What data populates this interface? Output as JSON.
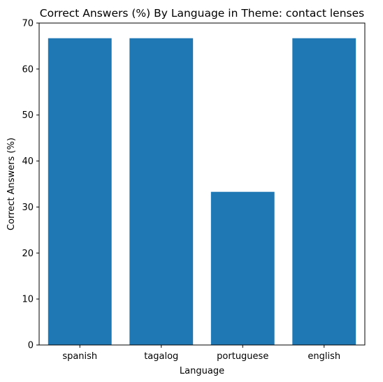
{
  "chart_data": {
    "type": "bar",
    "title": "Correct Answers (%) By Language in Theme: contact lenses",
    "xlabel": "Language",
    "ylabel": "Correct Answers (%)",
    "categories": [
      "spanish",
      "tagalog",
      "portuguese",
      "english"
    ],
    "values": [
      66.7,
      66.7,
      33.3,
      66.7
    ],
    "ylim": [
      0,
      70
    ],
    "yticks": [
      0,
      10,
      20,
      30,
      40,
      50,
      60,
      70
    ],
    "bar_color": "#1f77b4",
    "grid": false,
    "legend": false
  }
}
